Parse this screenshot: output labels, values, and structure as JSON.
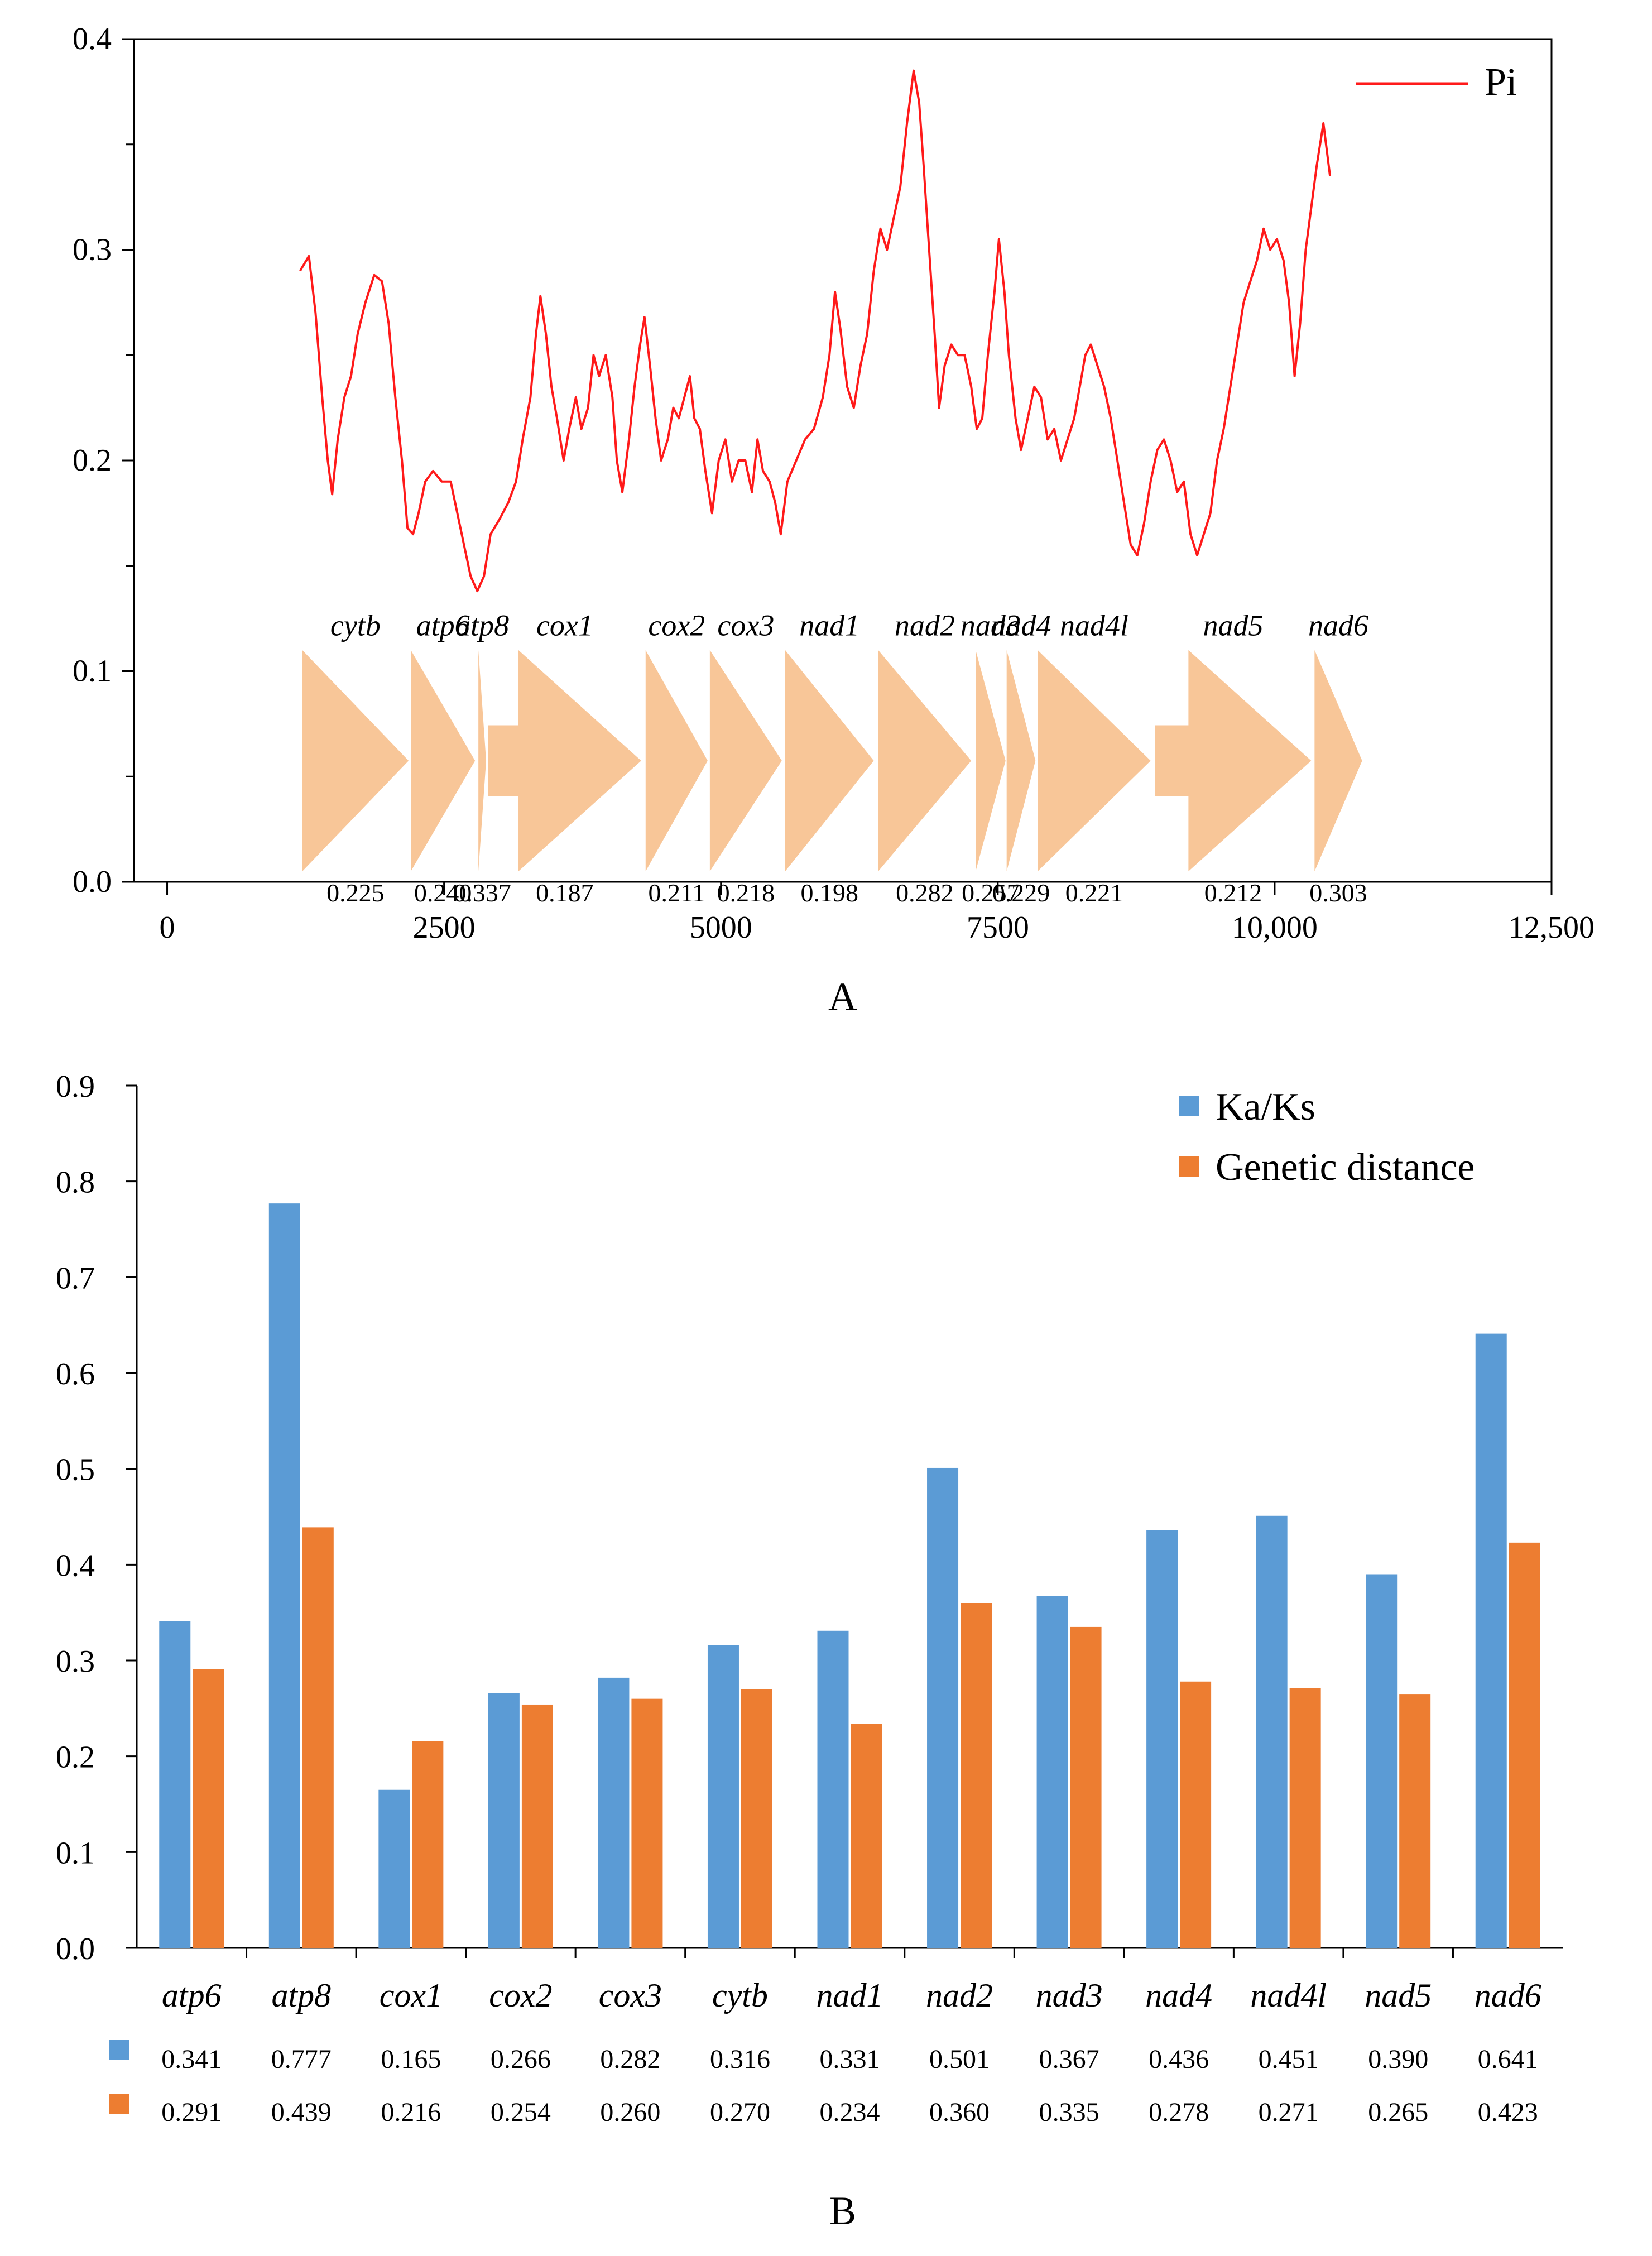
{
  "chart_data": [
    {
      "panel": "A",
      "type": "line",
      "title": "",
      "xlabel": "",
      "ylabel": "",
      "xlim": [
        -300,
        12500
      ],
      "ylim": [
        0,
        0.4
      ],
      "x_ticks": [
        0,
        2500,
        5000,
        7500,
        10000,
        12500
      ],
      "x_tick_labels": [
        "0",
        "2500",
        "5000",
        "7500",
        "10,000",
        "12,500"
      ],
      "y_ticks": [
        0,
        0.1,
        0.2,
        0.3,
        0.4
      ],
      "y_tick_labels": [
        "0.0",
        "0.1",
        "0.2",
        "0.3",
        "0.4"
      ],
      "legend": "top-right",
      "series": [
        {
          "name": "Pi",
          "color": "#ff1a1a",
          "points": [
            [
              1200,
              0.29
            ],
            [
              1280,
              0.297
            ],
            [
              1340,
              0.27
            ],
            [
              1400,
              0.23
            ],
            [
              1450,
              0.2
            ],
            [
              1490,
              0.184
            ],
            [
              1540,
              0.21
            ],
            [
              1600,
              0.23
            ],
            [
              1660,
              0.24
            ],
            [
              1720,
              0.26
            ],
            [
              1790,
              0.275
            ],
            [
              1870,
              0.288
            ],
            [
              1940,
              0.285
            ],
            [
              2000,
              0.265
            ],
            [
              2060,
              0.23
            ],
            [
              2120,
              0.2
            ],
            [
              2170,
              0.168
            ],
            [
              2220,
              0.165
            ],
            [
              2270,
              0.175
            ],
            [
              2330,
              0.19
            ],
            [
              2400,
              0.195
            ],
            [
              2480,
              0.19
            ],
            [
              2560,
              0.19
            ],
            [
              2620,
              0.175
            ],
            [
              2680,
              0.16
            ],
            [
              2740,
              0.145
            ],
            [
              2800,
              0.138
            ],
            [
              2860,
              0.145
            ],
            [
              2920,
              0.165
            ],
            [
              3000,
              0.172
            ],
            [
              3080,
              0.18
            ],
            [
              3150,
              0.19
            ],
            [
              3210,
              0.21
            ],
            [
              3280,
              0.23
            ],
            [
              3330,
              0.26
            ],
            [
              3370,
              0.278
            ],
            [
              3420,
              0.26
            ],
            [
              3470,
              0.235
            ],
            [
              3520,
              0.22
            ],
            [
              3580,
              0.2
            ],
            [
              3630,
              0.215
            ],
            [
              3690,
              0.23
            ],
            [
              3740,
              0.215
            ],
            [
              3800,
              0.225
            ],
            [
              3850,
              0.25
            ],
            [
              3900,
              0.24
            ],
            [
              3960,
              0.25
            ],
            [
              4020,
              0.23
            ],
            [
              4060,
              0.2
            ],
            [
              4110,
              0.185
            ],
            [
              4170,
              0.21
            ],
            [
              4220,
              0.235
            ],
            [
              4270,
              0.255
            ],
            [
              4310,
              0.268
            ],
            [
              4360,
              0.245
            ],
            [
              4410,
              0.22
            ],
            [
              4460,
              0.2
            ],
            [
              4520,
              0.21
            ],
            [
              4570,
              0.225
            ],
            [
              4620,
              0.22
            ],
            [
              4680,
              0.232
            ],
            [
              4720,
              0.24
            ],
            [
              4760,
              0.22
            ],
            [
              4810,
              0.215
            ],
            [
              4860,
              0.195
            ],
            [
              4920,
              0.175
            ],
            [
              4980,
              0.2
            ],
            [
              5040,
              0.21
            ],
            [
              5100,
              0.19
            ],
            [
              5160,
              0.2
            ],
            [
              5220,
              0.2
            ],
            [
              5280,
              0.185
            ],
            [
              5330,
              0.21
            ],
            [
              5380,
              0.195
            ],
            [
              5440,
              0.19
            ],
            [
              5490,
              0.18
            ],
            [
              5540,
              0.165
            ],
            [
              5600,
              0.19
            ],
            [
              5680,
              0.2
            ],
            [
              5760,
              0.21
            ],
            [
              5840,
              0.215
            ],
            [
              5920,
              0.23
            ],
            [
              5980,
              0.25
            ],
            [
              6030,
              0.28
            ],
            [
              6080,
              0.262
            ],
            [
              6140,
              0.235
            ],
            [
              6200,
              0.225
            ],
            [
              6260,
              0.245
            ],
            [
              6320,
              0.26
            ],
            [
              6380,
              0.29
            ],
            [
              6440,
              0.31
            ],
            [
              6500,
              0.3
            ],
            [
              6560,
              0.315
            ],
            [
              6620,
              0.33
            ],
            [
              6680,
              0.36
            ],
            [
              6740,
              0.385
            ],
            [
              6790,
              0.37
            ],
            [
              6830,
              0.34
            ],
            [
              6880,
              0.3
            ],
            [
              6930,
              0.26
            ],
            [
              6970,
              0.225
            ],
            [
              7020,
              0.245
            ],
            [
              7080,
              0.255
            ],
            [
              7140,
              0.25
            ],
            [
              7200,
              0.25
            ],
            [
              7260,
              0.235
            ],
            [
              7310,
              0.215
            ],
            [
              7360,
              0.22
            ],
            [
              7410,
              0.25
            ],
            [
              7470,
              0.28
            ],
            [
              7510,
              0.305
            ],
            [
              7560,
              0.28
            ],
            [
              7600,
              0.25
            ],
            [
              7660,
              0.22
            ],
            [
              7710,
              0.205
            ],
            [
              7770,
              0.22
            ],
            [
              7830,
              0.235
            ],
            [
              7890,
              0.23
            ],
            [
              7950,
              0.21
            ],
            [
              8010,
              0.215
            ],
            [
              8070,
              0.2
            ],
            [
              8130,
              0.21
            ],
            [
              8190,
              0.22
            ],
            [
              8240,
              0.235
            ],
            [
              8290,
              0.25
            ],
            [
              8340,
              0.255
            ],
            [
              8400,
              0.245
            ],
            [
              8460,
              0.235
            ],
            [
              8520,
              0.22
            ],
            [
              8580,
              0.2
            ],
            [
              8640,
              0.18
            ],
            [
              8700,
              0.16
            ],
            [
              8760,
              0.155
            ],
            [
              8820,
              0.17
            ],
            [
              8880,
              0.19
            ],
            [
              8940,
              0.205
            ],
            [
              9000,
              0.21
            ],
            [
              9060,
              0.2
            ],
            [
              9120,
              0.185
            ],
            [
              9180,
              0.19
            ],
            [
              9240,
              0.165
            ],
            [
              9300,
              0.155
            ],
            [
              9360,
              0.165
            ],
            [
              9420,
              0.175
            ],
            [
              9480,
              0.2
            ],
            [
              9540,
              0.215
            ],
            [
              9600,
              0.235
            ],
            [
              9660,
              0.255
            ],
            [
              9720,
              0.275
            ],
            [
              9780,
              0.285
            ],
            [
              9840,
              0.295
            ],
            [
              9900,
              0.31
            ],
            [
              9960,
              0.3
            ],
            [
              10020,
              0.305
            ],
            [
              10080,
              0.295
            ],
            [
              10130,
              0.275
            ],
            [
              10180,
              0.24
            ],
            [
              10230,
              0.265
            ],
            [
              10280,
              0.3
            ],
            [
              10330,
              0.32
            ],
            [
              10380,
              0.34
            ],
            [
              10440,
              0.36
            ],
            [
              10500,
              0.335
            ]
          ]
        }
      ],
      "genes": [
        {
          "name": "cytb",
          "start": 1220,
          "end": 2180,
          "pi": "0.225"
        },
        {
          "name": "atp6",
          "start": 2200,
          "end": 2780,
          "pi": "0.240"
        },
        {
          "name": "atp8",
          "start": 2810,
          "end": 2880,
          "pi": "0.337"
        },
        {
          "name": "cox1",
          "start": 2900,
          "end": 4280,
          "pi": "0.187"
        },
        {
          "name": "cox2",
          "start": 4320,
          "end": 4880,
          "pi": "0.211"
        },
        {
          "name": "cox3",
          "start": 4900,
          "end": 5550,
          "pi": "0.218"
        },
        {
          "name": "nad1",
          "start": 5580,
          "end": 6380,
          "pi": "0.198"
        },
        {
          "name": "nad2",
          "start": 6420,
          "end": 7260,
          "pi": "0.282"
        },
        {
          "name": "nad3",
          "start": 7300,
          "end": 7570,
          "pi": "0.257"
        },
        {
          "name": "nad4",
          "start": 7580,
          "end": 7840,
          "pi": "0.229"
        },
        {
          "name": "nad4l",
          "start": 7860,
          "end": 8880,
          "pi": "0.221"
        },
        {
          "name": "nad5",
          "start": 8920,
          "end": 10330,
          "pi": "0.212"
        },
        {
          "name": "nad6",
          "start": 10360,
          "end": 10790,
          "pi": "0.303"
        }
      ],
      "panel_label": "A"
    },
    {
      "panel": "B",
      "type": "bar",
      "title": "",
      "xlabel": "",
      "ylabel": "",
      "ylim": [
        0,
        0.9
      ],
      "y_ticks": [
        0,
        0.1,
        0.2,
        0.3,
        0.4,
        0.5,
        0.6,
        0.7,
        0.8,
        0.9
      ],
      "y_tick_labels": [
        "0.0",
        "0.1",
        "0.2",
        "0.3",
        "0.4",
        "0.5",
        "0.6",
        "0.7",
        "0.8",
        "0.9"
      ],
      "legend": "top-right",
      "categories": [
        "atp6",
        "atp8",
        "cox1",
        "cox2",
        "cox3",
        "cytb",
        "nad1",
        "nad2",
        "nad3",
        "nad4",
        "nad4l",
        "nad5",
        "nad6"
      ],
      "series": [
        {
          "name": "Ka/Ks",
          "color": "#5b9bd5",
          "values": [
            0.341,
            0.777,
            0.165,
            0.266,
            0.282,
            0.316,
            0.331,
            0.501,
            0.367,
            0.436,
            0.451,
            0.39,
            0.641
          ],
          "labels": [
            "0.341",
            "0.777",
            "0.165",
            "0.266",
            "0.282",
            "0.316",
            "0.331",
            "0.501",
            "0.367",
            "0.436",
            "0.451",
            "0.390",
            "0.641"
          ]
        },
        {
          "name": "Genetic distance",
          "color": "#ed7d31",
          "values": [
            0.291,
            0.439,
            0.216,
            0.254,
            0.26,
            0.27,
            0.234,
            0.36,
            0.335,
            0.278,
            0.271,
            0.265,
            0.423
          ],
          "labels": [
            "0.291",
            "0.439",
            "0.216",
            "0.254",
            "0.260",
            "0.270",
            "0.234",
            "0.360",
            "0.335",
            "0.278",
            "0.271",
            "0.265",
            "0.423"
          ]
        }
      ],
      "panel_label": "B"
    }
  ]
}
